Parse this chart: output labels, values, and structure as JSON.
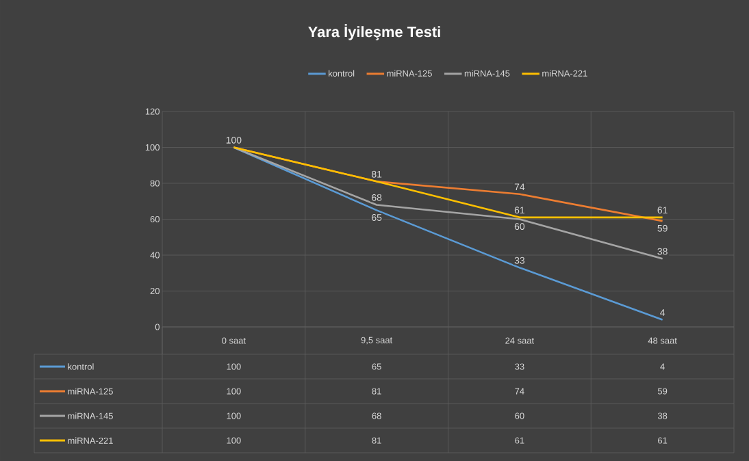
{
  "chart_data": {
    "type": "line",
    "title": "Yara İyileşme Testi",
    "categories": [
      "0 saat",
      "9,5 saat",
      "24 saat",
      "48 saat"
    ],
    "series": [
      {
        "name": "kontrol",
        "color": "#5b9bd5",
        "values": [
          100,
          65,
          33,
          4
        ],
        "value_labels": [
          null,
          "65",
          "33",
          "4"
        ]
      },
      {
        "name": "miRNA-125",
        "color": "#ed7d31",
        "values": [
          100,
          81,
          74,
          59
        ],
        "value_labels": [
          null,
          "81",
          "74",
          "59"
        ]
      },
      {
        "name": "miRNA-145",
        "color": "#a5a5a5",
        "values": [
          100,
          68,
          60,
          38
        ],
        "value_labels": [
          null,
          "68",
          "60",
          "38"
        ]
      },
      {
        "name": "miRNA-221",
        "color": "#ffc000",
        "values": [
          100,
          81,
          61,
          61
        ],
        "value_labels": [
          "100",
          null,
          "61",
          "61"
        ]
      }
    ],
    "ylim": [
      0,
      120
    ],
    "yticks": [
      0,
      20,
      40,
      60,
      80,
      100,
      120
    ],
    "annotations": [
      "100",
      "65",
      "33",
      "4",
      "100",
      "81",
      "74",
      "59",
      "100",
      "68",
      "60",
      "38",
      "100",
      "81",
      "61",
      "61"
    ],
    "grid": true,
    "legend": "top",
    "marker": "none",
    "line_style": "solid"
  }
}
